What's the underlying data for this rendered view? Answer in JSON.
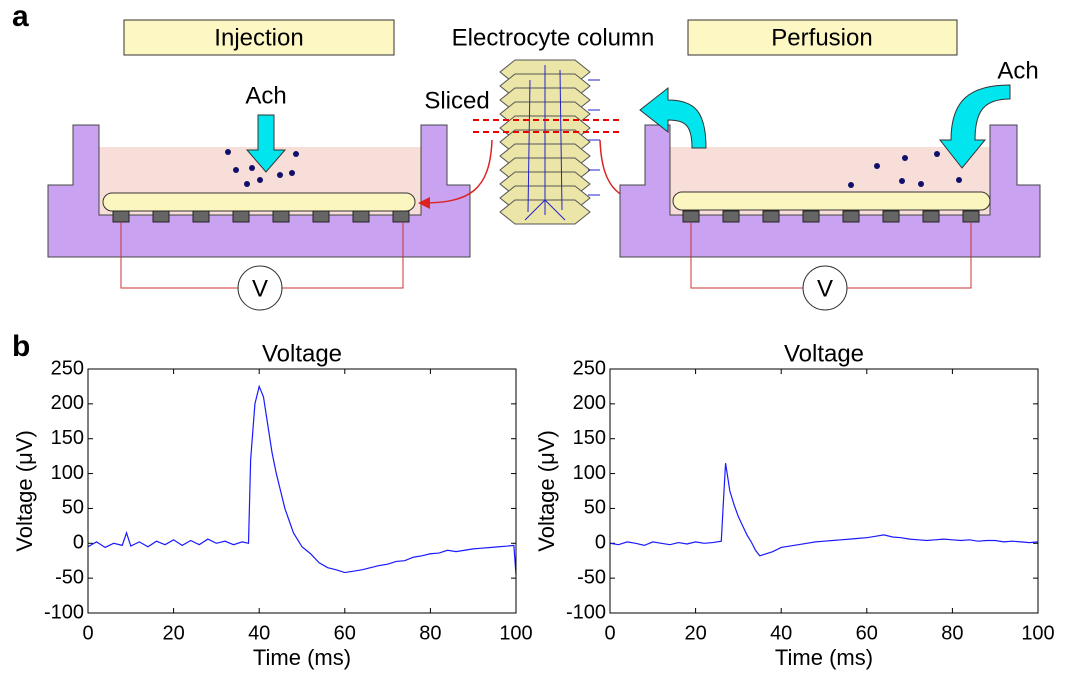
{
  "panel_a": {
    "label": "a",
    "left_title": "Injection",
    "column_label": "Electrocyte column",
    "right_title": "Perfusion",
    "left_reagent": "Ach",
    "right_reagent": "Ach",
    "slice_label": "Sliced",
    "left_meter": "V",
    "right_meter": "V"
  },
  "panel_b": {
    "label": "b"
  },
  "chart_data": [
    {
      "type": "line",
      "title": "Voltage",
      "x_label": "Time (ms)",
      "y_label": "Voltage (μV)",
      "color": "#1a1aff",
      "x": [
        0,
        2,
        4,
        6,
        8,
        9,
        10,
        12,
        14,
        16,
        18,
        20,
        22,
        24,
        26,
        28,
        30,
        32,
        34,
        36,
        37.5,
        38,
        39,
        40,
        41,
        42,
        43,
        44,
        45,
        46,
        48,
        50,
        52,
        54,
        56,
        58,
        60,
        62,
        64,
        66,
        68,
        70,
        72,
        74,
        76,
        78,
        80,
        82,
        84,
        86,
        88,
        90,
        92,
        94,
        96,
        98,
        99.5,
        100
      ],
      "values": [
        -5,
        2,
        -6,
        0,
        -3,
        15,
        -4,
        2,
        -5,
        3,
        -2,
        5,
        -3,
        4,
        -2,
        6,
        0,
        3,
        -2,
        2,
        0,
        120,
        200,
        225,
        210,
        170,
        130,
        100,
        75,
        50,
        15,
        -5,
        -15,
        -28,
        -35,
        -38,
        -42,
        -40,
        -38,
        -35,
        -32,
        -30,
        -26,
        -25,
        -20,
        -18,
        -15,
        -14,
        -10,
        -12,
        -10,
        -8,
        -7,
        -6,
        -5,
        -4,
        -3,
        -45
      ],
      "xlim": [
        0,
        100
      ],
      "ylim": [
        -100,
        250
      ],
      "xticks": [
        0,
        20,
        40,
        60,
        80,
        100
      ],
      "yticks": [
        -100,
        -50,
        0,
        50,
        100,
        150,
        200,
        250
      ]
    },
    {
      "type": "line",
      "title": "Voltage",
      "x_label": "Time (ms)",
      "y_label": "Voltage (μV)",
      "color": "#1a1aff",
      "x": [
        0,
        2,
        4,
        6,
        8,
        10,
        12,
        14,
        16,
        18,
        20,
        22,
        24,
        26,
        26.5,
        27,
        27.5,
        28,
        29,
        30,
        31,
        32,
        33,
        34,
        35,
        36,
        38,
        40,
        42,
        44,
        46,
        48,
        50,
        52,
        54,
        56,
        58,
        60,
        62,
        64,
        66,
        68,
        70,
        72,
        74,
        76,
        78,
        80,
        82,
        84,
        86,
        88,
        90,
        92,
        94,
        96,
        98,
        100
      ],
      "values": [
        0,
        -2,
        2,
        0,
        -3,
        2,
        0,
        -2,
        1,
        -1,
        2,
        0,
        1,
        3,
        60,
        115,
        95,
        75,
        55,
        38,
        25,
        12,
        2,
        -10,
        -18,
        -16,
        -12,
        -6,
        -4,
        -2,
        0,
        2,
        3,
        4,
        5,
        6,
        7,
        8,
        10,
        12,
        9,
        8,
        6,
        5,
        4,
        5,
        6,
        5,
        4,
        5,
        3,
        4,
        4,
        2,
        3,
        2,
        1,
        2
      ],
      "xlim": [
        0,
        100
      ],
      "ylim": [
        -100,
        250
      ],
      "xticks": [
        0,
        20,
        40,
        60,
        80,
        100
      ],
      "yticks": [
        -100,
        -50,
        0,
        50,
        100,
        150,
        200,
        250
      ]
    }
  ]
}
